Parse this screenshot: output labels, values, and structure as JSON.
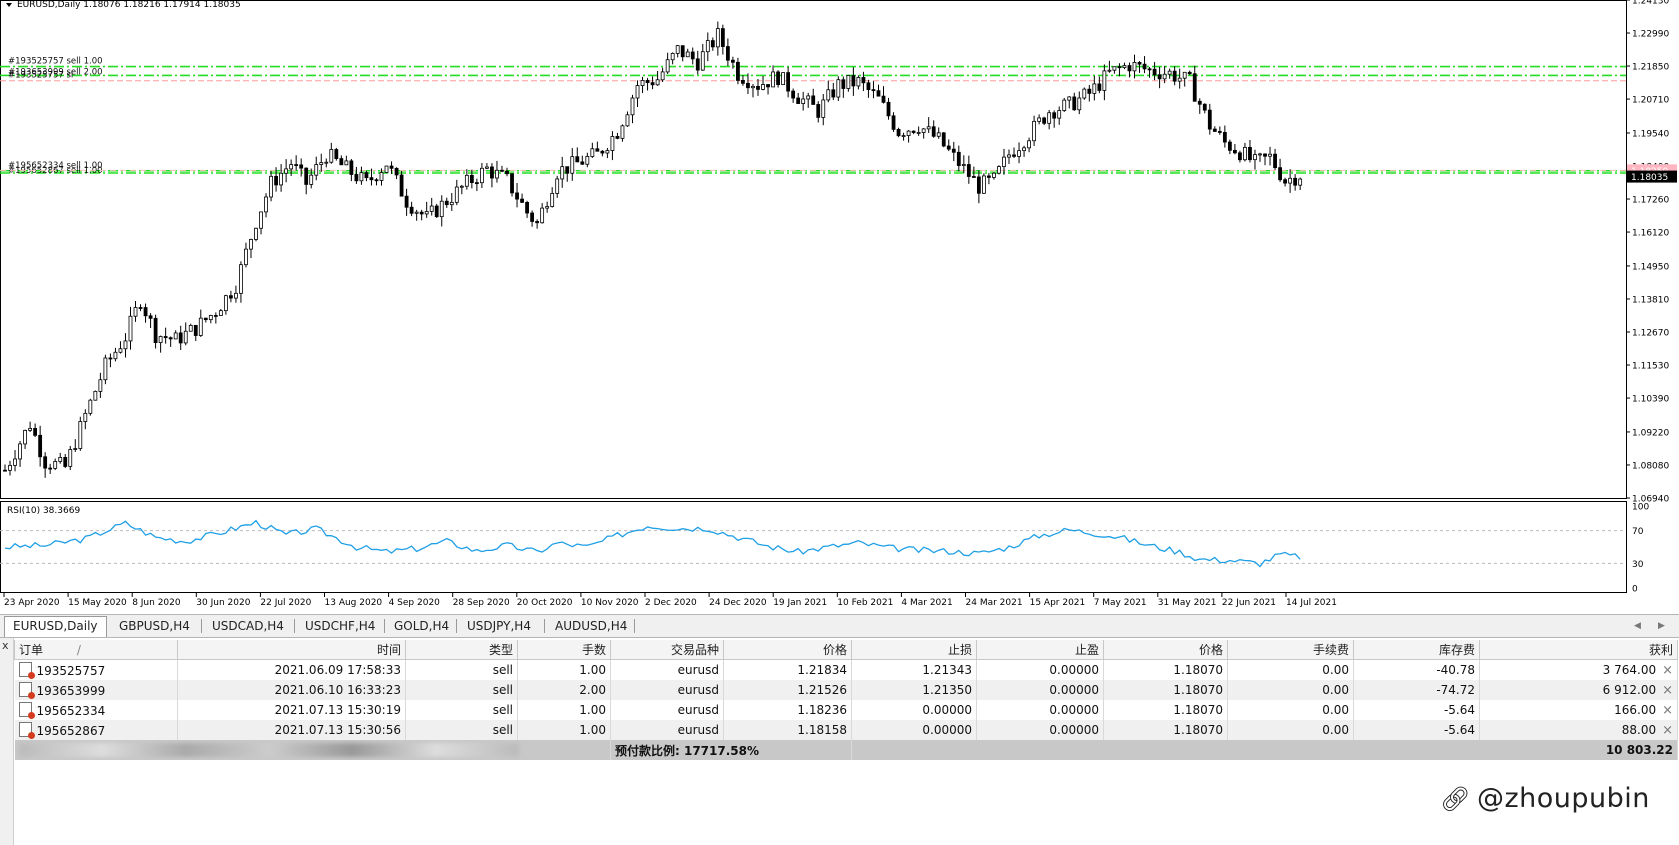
{
  "chart": {
    "header": "EURUSD,Daily  1.18076 1.18216 1.17914 1.18035",
    "header_arrow": "triangle-down-icon",
    "price_axis": [
      "1.24130",
      "1.22990",
      "1.21850",
      "1.20710",
      "1.19540",
      "1.18400",
      "1.17260",
      "1.16120",
      "1.14950",
      "1.13810",
      "1.12670",
      "1.11530",
      "1.10390",
      "1.09220",
      "1.08080",
      "1.06940"
    ],
    "current_price": "1.18035",
    "pink_price_label": "1.18250",
    "order_lines": [
      {
        "label": "#193525757 sell 1.00",
        "price": 1.21834,
        "color": "#22dd22"
      },
      {
        "label": "#193653999 sell 2.00",
        "price": 1.21526,
        "color": "#22dd22"
      },
      {
        "label": "#193525757 sl",
        "price": 1.21343,
        "color": "#ff9a9a"
      },
      {
        "label": "#195652334 sell 1.00",
        "price": 1.18236,
        "color": "#22dd22"
      },
      {
        "label": "#195652867 sell 1.00",
        "price": 1.18158,
        "color": "#22dd22"
      }
    ],
    "rsi_label": "RSI(10) 38.3669",
    "rsi_levels": [
      "100",
      "70",
      "30",
      "0"
    ],
    "date_axis": [
      "23 Apr 2020",
      "15 May 2020",
      "8 Jun 2020",
      "30 Jun 2020",
      "22 Jul 2020",
      "13 Aug 2020",
      "4 Sep 2020",
      "28 Sep 2020",
      "20 Oct 2020",
      "10 Nov 2020",
      "2 Dec 2020",
      "24 Dec 2020",
      "19 Jan 2021",
      "10 Feb 2021",
      "4 Mar 2021",
      "24 Mar 2021",
      "15 Apr 2021",
      "7 May 2021",
      "31 May 2021",
      "22 Jun 2021",
      "14 Jul 2021"
    ]
  },
  "chart_data": {
    "type": "candlestick",
    "title": "EURUSD,Daily",
    "ylim": [
      1.0694,
      1.2413
    ],
    "close_anchors": [
      [
        0,
        1.079
      ],
      [
        5,
        1.095
      ],
      [
        8,
        1.082
      ],
      [
        12,
        1.08
      ],
      [
        16,
        1.098
      ],
      [
        20,
        1.115
      ],
      [
        24,
        1.125
      ],
      [
        27,
        1.138
      ],
      [
        30,
        1.126
      ],
      [
        34,
        1.124
      ],
      [
        38,
        1.128
      ],
      [
        42,
        1.134
      ],
      [
        46,
        1.143
      ],
      [
        50,
        1.165
      ],
      [
        53,
        1.178
      ],
      [
        57,
        1.185
      ],
      [
        60,
        1.178
      ],
      [
        64,
        1.188
      ],
      [
        68,
        1.183
      ],
      [
        72,
        1.178
      ],
      [
        76,
        1.185
      ],
      [
        80,
        1.172
      ],
      [
        84,
        1.166
      ],
      [
        88,
        1.172
      ],
      [
        92,
        1.178
      ],
      [
        96,
        1.183
      ],
      [
        100,
        1.179
      ],
      [
        104,
        1.168
      ],
      [
        106,
        1.164
      ],
      [
        110,
        1.182
      ],
      [
        114,
        1.185
      ],
      [
        118,
        1.188
      ],
      [
        122,
        1.196
      ],
      [
        126,
        1.212
      ],
      [
        130,
        1.214
      ],
      [
        134,
        1.224
      ],
      [
        138,
        1.22
      ],
      [
        142,
        1.229
      ],
      [
        146,
        1.216
      ],
      [
        150,
        1.212
      ],
      [
        154,
        1.215
      ],
      [
        158,
        1.208
      ],
      [
        162,
        1.203
      ],
      [
        166,
        1.212
      ],
      [
        170,
        1.213
      ],
      [
        174,
        1.207
      ],
      [
        178,
        1.196
      ],
      [
        182,
        1.198
      ],
      [
        186,
        1.193
      ],
      [
        190,
        1.185
      ],
      [
        194,
        1.177
      ],
      [
        197,
        1.179
      ],
      [
        200,
        1.188
      ],
      [
        204,
        1.195
      ],
      [
        208,
        1.203
      ],
      [
        212,
        1.205
      ],
      [
        216,
        1.209
      ],
      [
        220,
        1.216
      ],
      [
        224,
        1.219
      ],
      [
        228,
        1.217
      ],
      [
        232,
        1.216
      ],
      [
        236,
        1.213
      ],
      [
        240,
        1.198
      ],
      [
        243,
        1.192
      ],
      [
        246,
        1.189
      ],
      [
        249,
        1.185
      ],
      [
        252,
        1.187
      ],
      [
        255,
        1.179
      ],
      [
        258,
        1.181
      ]
    ],
    "rsi_anchors": [
      [
        0,
        50
      ],
      [
        8,
        52
      ],
      [
        16,
        60
      ],
      [
        24,
        79
      ],
      [
        30,
        62
      ],
      [
        36,
        57
      ],
      [
        42,
        66
      ],
      [
        50,
        80
      ],
      [
        56,
        65
      ],
      [
        62,
        72
      ],
      [
        70,
        50
      ],
      [
        76,
        44
      ],
      [
        82,
        48
      ],
      [
        88,
        57
      ],
      [
        94,
        45
      ],
      [
        100,
        52
      ],
      [
        106,
        44
      ],
      [
        110,
        55
      ],
      [
        116,
        50
      ],
      [
        122,
        64
      ],
      [
        128,
        76
      ],
      [
        134,
        73
      ],
      [
        140,
        73
      ],
      [
        146,
        62
      ],
      [
        152,
        51
      ],
      [
        158,
        44
      ],
      [
        164,
        50
      ],
      [
        170,
        55
      ],
      [
        176,
        49
      ],
      [
        182,
        46
      ],
      [
        188,
        45
      ],
      [
        194,
        42
      ],
      [
        200,
        50
      ],
      [
        206,
        64
      ],
      [
        212,
        71
      ],
      [
        218,
        66
      ],
      [
        222,
        62
      ],
      [
        228,
        52
      ],
      [
        234,
        44
      ],
      [
        238,
        35
      ],
      [
        244,
        34
      ],
      [
        250,
        30
      ],
      [
        254,
        41
      ],
      [
        258,
        38
      ]
    ]
  },
  "tabs": [
    {
      "label": "EURUSD,Daily",
      "active": true
    },
    {
      "label": "GBPUSD,H4",
      "active": false
    },
    {
      "label": "USDCAD,H4",
      "active": false
    },
    {
      "label": "USDCHF,H4",
      "active": false
    },
    {
      "label": "GOLD,H4",
      "active": false
    },
    {
      "label": "USDJPY,H4",
      "active": false
    },
    {
      "label": "AUDUSD,H4",
      "active": false
    }
  ],
  "tab_nav": {
    "left": "◀",
    "right": "▶"
  },
  "terminal": {
    "close_label": "x",
    "columns": [
      "订单",
      "时间",
      "类型",
      "手数",
      "交易品种",
      "价格",
      "止损",
      "止盈",
      "价格",
      "手续费",
      "库存费",
      "获利"
    ],
    "sort_indicator": "/",
    "rows": [
      {
        "order": "193525757",
        "time": "2021.06.09 17:58:33",
        "type": "sell",
        "lots": "1.00",
        "symbol": "eurusd",
        "open_price": "1.21834",
        "sl": "1.21343",
        "tp": "0.00000",
        "price": "1.18070",
        "commission": "0.00",
        "swap": "-40.78",
        "profit": "3 764.00"
      },
      {
        "order": "193653999",
        "time": "2021.06.10 16:33:23",
        "type": "sell",
        "lots": "2.00",
        "symbol": "eurusd",
        "open_price": "1.21526",
        "sl": "1.21350",
        "tp": "0.00000",
        "price": "1.18070",
        "commission": "0.00",
        "swap": "-74.72",
        "profit": "6 912.00"
      },
      {
        "order": "195652334",
        "time": "2021.07.13 15:30:19",
        "type": "sell",
        "lots": "1.00",
        "symbol": "eurusd",
        "open_price": "1.18236",
        "sl": "0.00000",
        "tp": "0.00000",
        "price": "1.18070",
        "commission": "0.00",
        "swap": "-5.64",
        "profit": "166.00"
      },
      {
        "order": "195652867",
        "time": "2021.07.13 15:30:56",
        "type": "sell",
        "lots": "1.00",
        "symbol": "eurusd",
        "open_price": "1.18158",
        "sl": "0.00000",
        "tp": "0.00000",
        "price": "1.18070",
        "commission": "0.00",
        "swap": "-5.64",
        "profit": "88.00"
      }
    ],
    "summary_visible": "预付款比例: 17717.58%",
    "summary_total": "10 803.22",
    "delete_icon": "×"
  },
  "watermark": "@zhoupubin"
}
